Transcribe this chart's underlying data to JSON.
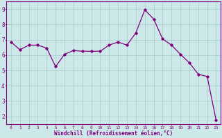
{
  "x": [
    0,
    1,
    2,
    3,
    4,
    5,
    6,
    7,
    8,
    9,
    10,
    11,
    12,
    13,
    14,
    15,
    16,
    17,
    18,
    19,
    20,
    21,
    22,
    23
  ],
  "y": [
    6.85,
    6.35,
    6.65,
    6.65,
    6.45,
    5.25,
    6.05,
    6.3,
    6.25,
    6.25,
    6.25,
    6.65,
    6.85,
    6.65,
    7.45,
    8.95,
    8.35,
    7.05,
    6.65,
    6.05,
    5.5,
    4.75,
    4.6,
    1.75
  ],
  "line_color": "#800080",
  "marker": "D",
  "marker_size": 1.8,
  "bg_color": "#cce8e8",
  "grid_color": "#aacccc",
  "xlabel": "Windchill (Refroidissement éolien,°C)",
  "xlabel_color": "#800080",
  "tick_color": "#800080",
  "ylim": [
    1.5,
    9.5
  ],
  "xlim": [
    -0.5,
    23.5
  ],
  "yticks": [
    2,
    3,
    4,
    5,
    6,
    7,
    8,
    9
  ],
  "xticks": [
    0,
    1,
    2,
    3,
    4,
    5,
    6,
    7,
    8,
    9,
    10,
    11,
    12,
    13,
    14,
    15,
    16,
    17,
    18,
    19,
    20,
    21,
    22,
    23
  ]
}
